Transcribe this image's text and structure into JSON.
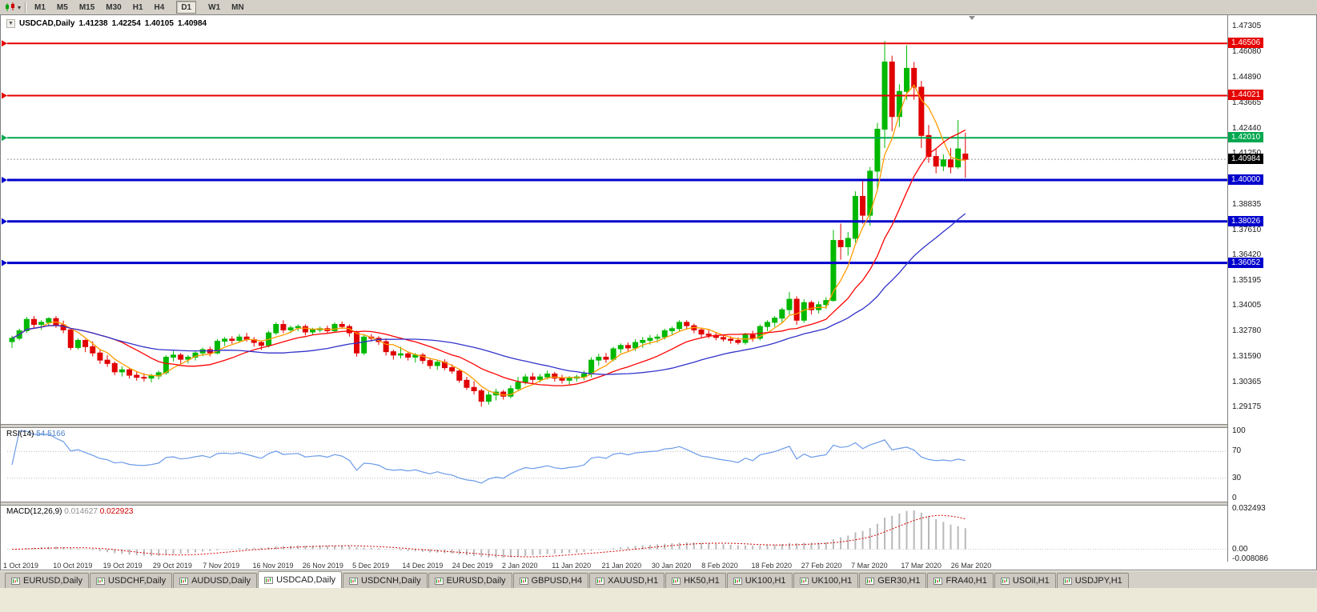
{
  "icons": {
    "collapse": "▼",
    "caret": "▾"
  },
  "colors": {
    "candle_up": "#00b800",
    "candle_down": "#e00000",
    "ma_fast": "#ff9c00",
    "ma_mid": "#ff0000",
    "ma_slow": "#3232cc",
    "bid_line": "#9a9a9a",
    "rsi_line": "#6b9be8",
    "macd_bar": "#b9b9b9",
    "macd_signal": "#d40000"
  },
  "toolbar": {
    "timeframes": [
      {
        "label": "M1",
        "active": false
      },
      {
        "label": "M5",
        "active": false
      },
      {
        "label": "M15",
        "active": false
      },
      {
        "label": "M30",
        "active": false
      },
      {
        "label": "H1",
        "active": false
      },
      {
        "label": "H4",
        "active": false
      },
      {
        "label": "D1",
        "active": true
      },
      {
        "label": "W1",
        "active": false
      },
      {
        "label": "MN",
        "active": false
      }
    ]
  },
  "chart": {
    "title": "USDCAD,Daily",
    "ohlc": {
      "open": "1.41238",
      "high": "1.42254",
      "low": "1.40105",
      "close": "1.40984"
    },
    "bid": {
      "price": 1.40984,
      "label": "1.40984"
    },
    "hlines": [
      {
        "price": 1.46506,
        "label": "1.46506",
        "color": "#e60000",
        "width": 2
      },
      {
        "price": 1.44021,
        "label": "1.44021",
        "color": "#e60000",
        "width": 2
      },
      {
        "price": 1.4201,
        "label": "1.42010",
        "color": "#00a84f",
        "width": 2
      },
      {
        "price": 1.4,
        "label": "1.40000",
        "color": "#0000cc",
        "width": 3
      },
      {
        "price": 1.38026,
        "label": "1.38026",
        "color": "#0000cc",
        "width": 3
      },
      {
        "price": 1.36052,
        "label": "1.36052",
        "color": "#0000cc",
        "width": 3
      }
    ],
    "price_scale_ticks": [
      "1.47305",
      "1.46080",
      "1.44890",
      "1.43665",
      "1.42440",
      "1.41250",
      "1.40040",
      "1.38835",
      "1.37610",
      "1.36420",
      "1.35195",
      "1.34005",
      "1.32780",
      "1.31590",
      "1.30365",
      "1.29175"
    ]
  },
  "rsi": {
    "name": "RSI(14)",
    "value": "54.5166",
    "period": 14,
    "levels": [
      70,
      30
    ],
    "scale_labels": [
      {
        "label": "100",
        "value": 100
      },
      {
        "label": "70",
        "value": 70
      },
      {
        "label": "30",
        "value": 30
      },
      {
        "label": "0",
        "value": 0
      }
    ]
  },
  "macd": {
    "name": "MACD(12,26,9)",
    "main_value": "0.014627",
    "signal_value": "0.022923",
    "fast": 12,
    "slow": 26,
    "signal": 9,
    "scale_labels": [
      {
        "label": "0.032493",
        "value": 0.032493
      },
      {
        "label": "0.00",
        "value": 0
      },
      {
        "label": "-0.008086",
        "value": -0.008086
      }
    ]
  },
  "tabs": [
    {
      "label": "EURUSD,Daily",
      "active": false
    },
    {
      "label": "USDCHF,Daily",
      "active": false
    },
    {
      "label": "AUDUSD,Daily",
      "active": false
    },
    {
      "label": "USDCAD,Daily",
      "active": true
    },
    {
      "label": "USDCNH,Daily",
      "active": false
    },
    {
      "label": "EURUSD,Daily",
      "active": false
    },
    {
      "label": "GBPUSD,H4",
      "active": false
    },
    {
      "label": "XAUUSD,H1",
      "active": false
    },
    {
      "label": "HK50,H1",
      "active": false
    },
    {
      "label": "UK100,H1",
      "active": false
    },
    {
      "label": "UK100,H1",
      "active": false
    },
    {
      "label": "GER30,H1",
      "active": false
    },
    {
      "label": "FRA40,H1",
      "active": false
    },
    {
      "label": "USOil,H1",
      "active": false
    },
    {
      "label": "USDJPY,H1",
      "active": false
    }
  ],
  "chart_data": {
    "type": "candlestick",
    "title": "USDCAD,Daily",
    "symbol": "USDCAD",
    "timeframe": "Daily",
    "price_range": {
      "max": 1.4762,
      "min": 1.2872
    },
    "x_labels": [
      "1 Oct 2019",
      "10 Oct 2019",
      "19 Oct 2019",
      "29 Oct 2019",
      "7 Nov 2019",
      "16 Nov 2019",
      "26 Nov 2019",
      "5 Dec 2019",
      "14 Dec 2019",
      "24 Dec 2019",
      "2 Jan 2020",
      "11 Jan 2020",
      "21 Jan 2020",
      "30 Jan 2020",
      "8 Feb 2020",
      "18 Feb 2020",
      "27 Feb 2020",
      "7 Mar 2020",
      "17 Mar 2020",
      "26 Mar 2020"
    ],
    "moving_averages": [
      {
        "period": 5,
        "color_key": "ma_fast"
      },
      {
        "period": 14,
        "color_key": "ma_mid"
      },
      {
        "period": 30,
        "color_key": "ma_slow"
      }
    ],
    "candles": [
      [
        1.323,
        1.3258,
        1.32,
        1.3246
      ],
      [
        1.3246,
        1.3292,
        1.3236,
        1.3282
      ],
      [
        1.3282,
        1.3348,
        1.3272,
        1.3336
      ],
      [
        1.3336,
        1.3352,
        1.3292,
        1.3312
      ],
      [
        1.3312,
        1.3332,
        1.3286,
        1.3322
      ],
      [
        1.3322,
        1.3346,
        1.3302,
        1.334
      ],
      [
        1.334,
        1.3352,
        1.3296,
        1.331
      ],
      [
        1.331,
        1.333,
        1.327,
        1.3286
      ],
      [
        1.3286,
        1.3292,
        1.319,
        1.3202
      ],
      [
        1.3202,
        1.3246,
        1.3192,
        1.3236
      ],
      [
        1.3236,
        1.3242,
        1.318,
        1.3206
      ],
      [
        1.3206,
        1.3232,
        1.316,
        1.3176
      ],
      [
        1.3176,
        1.3192,
        1.3124,
        1.3142
      ],
      [
        1.3142,
        1.3166,
        1.311,
        1.3126
      ],
      [
        1.3126,
        1.3136,
        1.307,
        1.3086
      ],
      [
        1.3086,
        1.3112,
        1.3064,
        1.3096
      ],
      [
        1.3096,
        1.3102,
        1.3054,
        1.307
      ],
      [
        1.307,
        1.3086,
        1.3044,
        1.306
      ],
      [
        1.306,
        1.308,
        1.304,
        1.3056
      ],
      [
        1.3056,
        1.3076,
        1.3036,
        1.3066
      ],
      [
        1.3066,
        1.3092,
        1.305,
        1.3082
      ],
      [
        1.3082,
        1.3166,
        1.3072,
        1.3156
      ],
      [
        1.3156,
        1.3186,
        1.3136,
        1.3166
      ],
      [
        1.3166,
        1.3176,
        1.3124,
        1.3146
      ],
      [
        1.3146,
        1.3166,
        1.3126,
        1.3156
      ],
      [
        1.3156,
        1.3186,
        1.314,
        1.3176
      ],
      [
        1.3176,
        1.3202,
        1.316,
        1.3192
      ],
      [
        1.3192,
        1.3206,
        1.316,
        1.3176
      ],
      [
        1.3176,
        1.3242,
        1.317,
        1.3232
      ],
      [
        1.3232,
        1.3252,
        1.321,
        1.3242
      ],
      [
        1.3242,
        1.3256,
        1.322,
        1.3236
      ],
      [
        1.3236,
        1.3266,
        1.3226,
        1.3252
      ],
      [
        1.3252,
        1.3272,
        1.323,
        1.324
      ],
      [
        1.324,
        1.3252,
        1.3206,
        1.3226
      ],
      [
        1.3226,
        1.3236,
        1.319,
        1.3212
      ],
      [
        1.3212,
        1.3282,
        1.3202,
        1.3272
      ],
      [
        1.3272,
        1.3322,
        1.3262,
        1.3312
      ],
      [
        1.3312,
        1.3332,
        1.327,
        1.3286
      ],
      [
        1.3286,
        1.3306,
        1.327,
        1.3296
      ],
      [
        1.3296,
        1.3312,
        1.328,
        1.3302
      ],
      [
        1.3302,
        1.3312,
        1.326,
        1.3276
      ],
      [
        1.3276,
        1.3296,
        1.3264,
        1.3286
      ],
      [
        1.3286,
        1.3302,
        1.3274,
        1.3292
      ],
      [
        1.3292,
        1.3306,
        1.327,
        1.3282
      ],
      [
        1.3282,
        1.3322,
        1.3272,
        1.3312
      ],
      [
        1.3312,
        1.3326,
        1.329,
        1.3302
      ],
      [
        1.3302,
        1.3312,
        1.3254,
        1.3272
      ],
      [
        1.3272,
        1.3282,
        1.3158,
        1.3176
      ],
      [
        1.3176,
        1.3262,
        1.3166,
        1.3252
      ],
      [
        1.3252,
        1.3266,
        1.323,
        1.3246
      ],
      [
        1.3246,
        1.3256,
        1.3214,
        1.323
      ],
      [
        1.323,
        1.3246,
        1.3164,
        1.3182
      ],
      [
        1.3182,
        1.3192,
        1.3144,
        1.3166
      ],
      [
        1.3166,
        1.3206,
        1.315,
        1.3172
      ],
      [
        1.3172,
        1.3182,
        1.314,
        1.3156
      ],
      [
        1.3156,
        1.3176,
        1.313,
        1.3166
      ],
      [
        1.3166,
        1.3176,
        1.3124,
        1.314
      ],
      [
        1.314,
        1.3152,
        1.31,
        1.3116
      ],
      [
        1.3116,
        1.3142,
        1.3096,
        1.3132
      ],
      [
        1.3132,
        1.3146,
        1.3094,
        1.3106
      ],
      [
        1.3106,
        1.3122,
        1.3078,
        1.309
      ],
      [
        1.309,
        1.31,
        1.3034,
        1.3046
      ],
      [
        1.3046,
        1.3062,
        1.3,
        1.3012
      ],
      [
        1.3012,
        1.3042,
        1.2978,
        1.2996
      ],
      [
        1.2996,
        1.3006,
        1.292,
        1.2946
      ],
      [
        1.2946,
        1.2992,
        1.293,
        1.2976
      ],
      [
        1.2976,
        1.3006,
        1.295,
        1.299
      ],
      [
        1.299,
        1.3,
        1.2954,
        1.297
      ],
      [
        1.297,
        1.3022,
        1.296,
        1.3006
      ],
      [
        1.3006,
        1.3062,
        1.2996,
        1.3036
      ],
      [
        1.3036,
        1.3076,
        1.3026,
        1.3062
      ],
      [
        1.3062,
        1.3082,
        1.303,
        1.305
      ],
      [
        1.305,
        1.3076,
        1.3036,
        1.3062
      ],
      [
        1.3062,
        1.3092,
        1.305,
        1.3076
      ],
      [
        1.3076,
        1.3086,
        1.304,
        1.3056
      ],
      [
        1.3056,
        1.3072,
        1.303,
        1.3046
      ],
      [
        1.3046,
        1.3066,
        1.3026,
        1.3056
      ],
      [
        1.3056,
        1.3072,
        1.304,
        1.3062
      ],
      [
        1.3062,
        1.3092,
        1.3046,
        1.3076
      ],
      [
        1.3076,
        1.3156,
        1.306,
        1.3142
      ],
      [
        1.3142,
        1.3172,
        1.3116,
        1.3156
      ],
      [
        1.3156,
        1.3176,
        1.313,
        1.3146
      ],
      [
        1.3146,
        1.3206,
        1.3136,
        1.3196
      ],
      [
        1.3196,
        1.3222,
        1.3176,
        1.3212
      ],
      [
        1.3212,
        1.3226,
        1.318,
        1.32
      ],
      [
        1.32,
        1.3242,
        1.3186,
        1.3226
      ],
      [
        1.3226,
        1.3252,
        1.32,
        1.3236
      ],
      [
        1.3236,
        1.3262,
        1.3216,
        1.3246
      ],
      [
        1.3246,
        1.3266,
        1.3226,
        1.3252
      ],
      [
        1.3252,
        1.3292,
        1.324,
        1.3282
      ],
      [
        1.3282,
        1.3302,
        1.326,
        1.3292
      ],
      [
        1.3292,
        1.3332,
        1.328,
        1.3322
      ],
      [
        1.3322,
        1.3332,
        1.329,
        1.3306
      ],
      [
        1.3306,
        1.3316,
        1.327,
        1.3286
      ],
      [
        1.3286,
        1.3296,
        1.325,
        1.3266
      ],
      [
        1.3266,
        1.3286,
        1.3246,
        1.326
      ],
      [
        1.326,
        1.3276,
        1.3236,
        1.325
      ],
      [
        1.325,
        1.3262,
        1.323,
        1.3242
      ],
      [
        1.3242,
        1.3256,
        1.322,
        1.3236
      ],
      [
        1.3236,
        1.325,
        1.3216,
        1.3226
      ],
      [
        1.3226,
        1.3272,
        1.3216,
        1.3262
      ],
      [
        1.3262,
        1.3282,
        1.323,
        1.3246
      ],
      [
        1.3246,
        1.3312,
        1.3236,
        1.3302
      ],
      [
        1.3302,
        1.3332,
        1.328,
        1.3322
      ],
      [
        1.3322,
        1.3352,
        1.33,
        1.3342
      ],
      [
        1.3342,
        1.3392,
        1.332,
        1.3382
      ],
      [
        1.3382,
        1.3466,
        1.336,
        1.3432
      ],
      [
        1.3432,
        1.3446,
        1.331,
        1.3332
      ],
      [
        1.3332,
        1.3432,
        1.332,
        1.3416
      ],
      [
        1.3416,
        1.3426,
        1.336,
        1.3382
      ],
      [
        1.3382,
        1.3422,
        1.3364,
        1.3406
      ],
      [
        1.3406,
        1.3442,
        1.3386,
        1.3426
      ],
      [
        1.3426,
        1.3762,
        1.342,
        1.3712
      ],
      [
        1.3712,
        1.3792,
        1.362,
        1.3682
      ],
      [
        1.3682,
        1.3752,
        1.364,
        1.3722
      ],
      [
        1.3722,
        1.3946,
        1.3702,
        1.3922
      ],
      [
        1.3922,
        1.3996,
        1.3792,
        1.3832
      ],
      [
        1.3832,
        1.4062,
        1.3782,
        1.4042
      ],
      [
        1.4042,
        1.4272,
        1.3952,
        1.4242
      ],
      [
        1.4242,
        1.4662,
        1.4152,
        1.4562
      ],
      [
        1.4562,
        1.4592,
        1.4232,
        1.4302
      ],
      [
        1.4302,
        1.4456,
        1.4252,
        1.4422
      ],
      [
        1.4422,
        1.4642,
        1.4382,
        1.4532
      ],
      [
        1.4532,
        1.4562,
        1.4382,
        1.4442
      ],
      [
        1.4442,
        1.4472,
        1.4152,
        1.4212
      ],
      [
        1.4212,
        1.4262,
        1.4082,
        1.4112
      ],
      [
        1.4112,
        1.4152,
        1.4032,
        1.4066
      ],
      [
        1.4066,
        1.4122,
        1.4042,
        1.4096
      ],
      [
        1.4096,
        1.4152,
        1.4032,
        1.4062
      ],
      [
        1.4062,
        1.4286,
        1.4052,
        1.4148
      ],
      [
        1.41238,
        1.42254,
        1.40105,
        1.40984
      ]
    ]
  }
}
